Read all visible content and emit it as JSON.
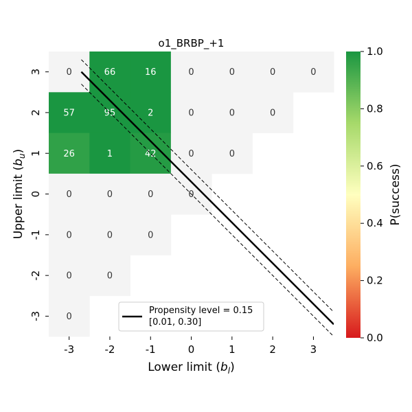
{
  "chart_data": {
    "type": "heatmap",
    "title": "o1_BRBP_+1",
    "xlabel_text": "Lower limit (",
    "xlabel_var": "b",
    "xlabel_sub": "l",
    "xlabel_close": ")",
    "ylabel_text": "Upper limit (",
    "ylabel_var": "b",
    "ylabel_sub": "u",
    "ylabel_close": ")",
    "x_categories": [
      "-3",
      "-2",
      "-1",
      "0",
      "1",
      "2",
      "3"
    ],
    "y_categories": [
      "3",
      "2",
      "1",
      "0",
      "-1",
      "-2",
      "-3"
    ],
    "cells": [
      {
        "x": "-3",
        "y": "3",
        "label": "0",
        "p": null
      },
      {
        "x": "-2",
        "y": "3",
        "label": "66",
        "p": 1.0
      },
      {
        "x": "-1",
        "y": "3",
        "label": "16",
        "p": 1.0
      },
      {
        "x": "0",
        "y": "3",
        "label": "0",
        "p": null
      },
      {
        "x": "1",
        "y": "3",
        "label": "0",
        "p": null
      },
      {
        "x": "2",
        "y": "3",
        "label": "0",
        "p": null
      },
      {
        "x": "3",
        "y": "3",
        "label": "0",
        "p": null
      },
      {
        "x": "-3",
        "y": "2",
        "label": "57",
        "p": 1.0
      },
      {
        "x": "-2",
        "y": "2",
        "label": "95",
        "p": 1.0
      },
      {
        "x": "-1",
        "y": "2",
        "label": "2",
        "p": 1.0
      },
      {
        "x": "0",
        "y": "2",
        "label": "0",
        "p": null
      },
      {
        "x": "1",
        "y": "2",
        "label": "0",
        "p": null
      },
      {
        "x": "2",
        "y": "2",
        "label": "0",
        "p": null
      },
      {
        "x": "-3",
        "y": "1",
        "label": "26",
        "p": 0.96
      },
      {
        "x": "-2",
        "y": "1",
        "label": "1",
        "p": 1.0
      },
      {
        "x": "-1",
        "y": "1",
        "label": "42",
        "p": 0.98
      },
      {
        "x": "0",
        "y": "1",
        "label": "0",
        "p": null
      },
      {
        "x": "1",
        "y": "1",
        "label": "0",
        "p": null
      },
      {
        "x": "-3",
        "y": "0",
        "label": "0",
        "p": null
      },
      {
        "x": "-2",
        "y": "0",
        "label": "0",
        "p": null
      },
      {
        "x": "-1",
        "y": "0",
        "label": "0",
        "p": null
      },
      {
        "x": "0",
        "y": "0",
        "label": "0",
        "p": null
      },
      {
        "x": "-3",
        "y": "-1",
        "label": "0",
        "p": null
      },
      {
        "x": "-2",
        "y": "-1",
        "label": "0",
        "p": null
      },
      {
        "x": "-1",
        "y": "-1",
        "label": "0",
        "p": null
      },
      {
        "x": "-3",
        "y": "-2",
        "label": "0",
        "p": null
      },
      {
        "x": "-2",
        "y": "-2",
        "label": "0",
        "p": null
      },
      {
        "x": "-3",
        "y": "-3",
        "label": "0",
        "p": null
      }
    ],
    "no_data_color": "#f4f4f4",
    "colorbar": {
      "label": "P(success)",
      "range": [
        0,
        1
      ],
      "ticks": [
        "0.0",
        "0.2",
        "0.4",
        "0.6",
        "0.8",
        "1.0"
      ],
      "colors": [
        "#d7191c",
        "#fdae61",
        "#ffffbf",
        "#a6d96a",
        "#1a9641"
      ]
    },
    "propensity_line": {
      "label": "Propensity level = 0.15",
      "interval_label": "[0.01, 0.30]",
      "style_center": "solid",
      "style_interval": "dashed",
      "color": "#000000",
      "points": [
        [
          -2.7,
          3.0
        ],
        [
          3.5,
          -3.2
        ]
      ],
      "upper_points": [
        [
          -2.7,
          3.3
        ],
        [
          3.5,
          -2.9
        ]
      ],
      "lower_points": [
        [
          -2.7,
          2.7
        ],
        [
          3.5,
          -3.5
        ]
      ]
    },
    "legend_position": "lower center"
  }
}
